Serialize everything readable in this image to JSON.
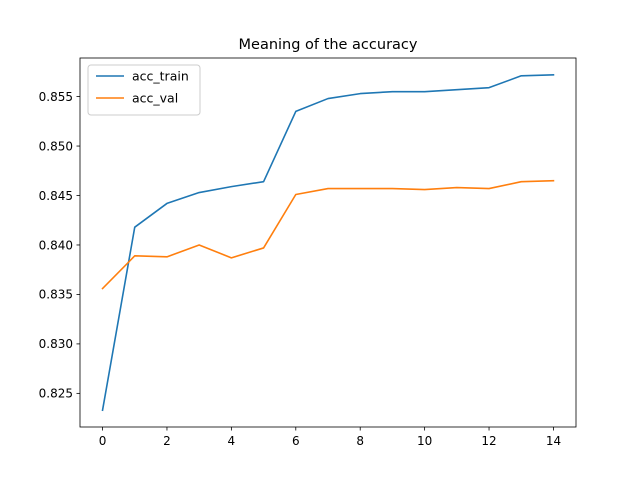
{
  "chart_data": {
    "type": "line",
    "title": "Meaning of the accuracy",
    "xlabel": "",
    "ylabel": "",
    "x": [
      0,
      1,
      2,
      3,
      4,
      5,
      6,
      7,
      8,
      9,
      10,
      11,
      12,
      13,
      14
    ],
    "series": [
      {
        "name": "acc_train",
        "color": "#1f77b4",
        "values": [
          0.8233,
          0.8418,
          0.8442,
          0.8453,
          0.8459,
          0.8464,
          0.8535,
          0.8548,
          0.8553,
          0.8555,
          0.8555,
          0.8557,
          0.8559,
          0.8571,
          0.8572
        ]
      },
      {
        "name": "acc_val",
        "color": "#ff7f0e",
        "values": [
          0.8356,
          0.8389,
          0.8388,
          0.84,
          0.8387,
          0.8397,
          0.8451,
          0.8457,
          0.8457,
          0.8457,
          0.8456,
          0.8458,
          0.8457,
          0.8464,
          0.8465
        ]
      }
    ],
    "xlim": [
      -0.7,
      14.7
    ],
    "ylim": [
      0.8216,
      0.8589
    ],
    "xticks": [
      0,
      2,
      4,
      6,
      8,
      10,
      12,
      14
    ],
    "yticks": [
      0.825,
      0.83,
      0.835,
      0.84,
      0.845,
      0.85,
      0.855
    ],
    "ytick_labels": [
      "0.825",
      "0.830",
      "0.835",
      "0.840",
      "0.845",
      "0.850",
      "0.855"
    ],
    "grid": false,
    "legend_position": "top-left"
  }
}
